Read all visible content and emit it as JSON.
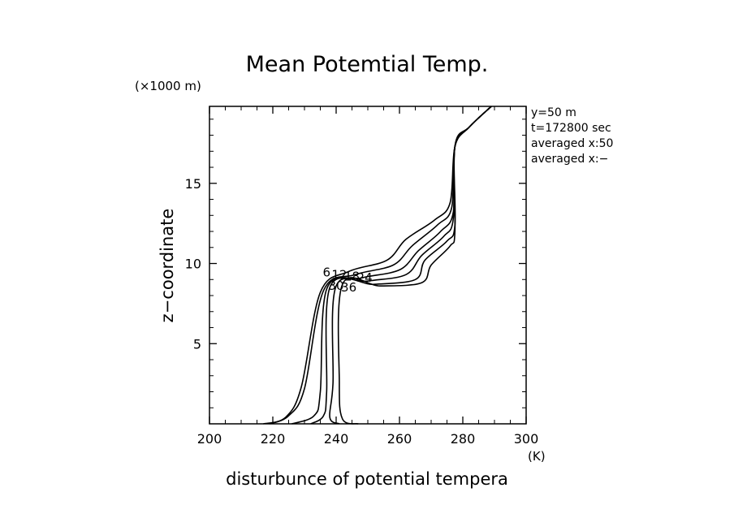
{
  "chart_data": {
    "type": "line",
    "title": "Mean Potemtial Temp.",
    "xlabel": "disturbunce of potential tempera",
    "ylabel": "z−coordinate",
    "x_unit": "(K)",
    "y_unit": "(×1000 m)",
    "xlim": [
      200,
      300
    ],
    "ylim": [
      0,
      19.8
    ],
    "x_ticks": [
      "200",
      "220",
      "240",
      "260",
      "280",
      "300"
    ],
    "y_ticks": [
      "5",
      "10",
      "15"
    ],
    "x_tick_values": [
      200,
      220,
      240,
      260,
      280,
      300
    ],
    "y_tick_values": [
      5,
      10,
      15
    ],
    "info": [
      "y=50  m",
      "t=172800 sec",
      "averaged   x:50",
      "averaged   x:−"
    ],
    "contour_labels": [
      "6",
      "12",
      "18",
      "24",
      "30",
      "36"
    ],
    "series": [
      {
        "values": [
          [
            217,
            0
          ],
          [
            224,
            0.4
          ],
          [
            229,
            2.3
          ],
          [
            235,
            8.2
          ],
          [
            244,
            9.5
          ],
          [
            256,
            10.2
          ],
          [
            262,
            11.5
          ],
          [
            271,
            12.7
          ],
          [
            276,
            13.8
          ],
          [
            277.5,
            17.3
          ],
          [
            282,
            18.5
          ],
          [
            289,
            19.8
          ]
        ]
      },
      {
        "values": [
          [
            219,
            0
          ],
          [
            225,
            0.5
          ],
          [
            230,
            2.2
          ],
          [
            236,
            8.3
          ],
          [
            246,
            9.3
          ],
          [
            258,
            9.9
          ],
          [
            264,
            11.1
          ],
          [
            272,
            12.4
          ],
          [
            276.5,
            13.5
          ],
          [
            277.5,
            17.3
          ],
          [
            282,
            18.5
          ],
          [
            289,
            19.8
          ]
        ]
      },
      {
        "values": [
          [
            226,
            0
          ],
          [
            233,
            0.5
          ],
          [
            235,
            2.0
          ],
          [
            237,
            8.4
          ],
          [
            248,
            9.1
          ],
          [
            260,
            9.6
          ],
          [
            266,
            10.8
          ],
          [
            273,
            12.0
          ],
          [
            277,
            13.2
          ],
          [
            277.5,
            17.3
          ],
          [
            282,
            18.5
          ],
          [
            289,
            19.8
          ]
        ]
      },
      {
        "values": [
          [
            232,
            0
          ],
          [
            236,
            0.5
          ],
          [
            237,
            2.0
          ],
          [
            238,
            8.5
          ],
          [
            250,
            8.9
          ],
          [
            262,
            9.3
          ],
          [
            267,
            10.5
          ],
          [
            274,
            11.7
          ],
          [
            277,
            12.8
          ],
          [
            277.5,
            17.3
          ],
          [
            282,
            18.5
          ],
          [
            289,
            19.8
          ]
        ]
      },
      {
        "values": [
          [
            241,
            0
          ],
          [
            238,
            0.4
          ],
          [
            239,
            2.5
          ],
          [
            240,
            8.6
          ],
          [
            252,
            8.7
          ],
          [
            265,
            9.0
          ],
          [
            268,
            10.2
          ],
          [
            275,
            11.4
          ],
          [
            277.5,
            12.4
          ],
          [
            277.5,
            17.3
          ],
          [
            282,
            18.5
          ],
          [
            289,
            19.8
          ]
        ]
      },
      {
        "values": [
          [
            247,
            0
          ],
          [
            242,
            0.3
          ],
          [
            241,
            2.6
          ],
          [
            242,
            8.7
          ],
          [
            254,
            8.6
          ],
          [
            267,
            8.8
          ],
          [
            270,
            9.9
          ],
          [
            276,
            11.1
          ],
          [
            277.5,
            12.0
          ],
          [
            277.5,
            17.3
          ],
          [
            282,
            18.5
          ],
          [
            289,
            19.8
          ]
        ]
      }
    ]
  }
}
